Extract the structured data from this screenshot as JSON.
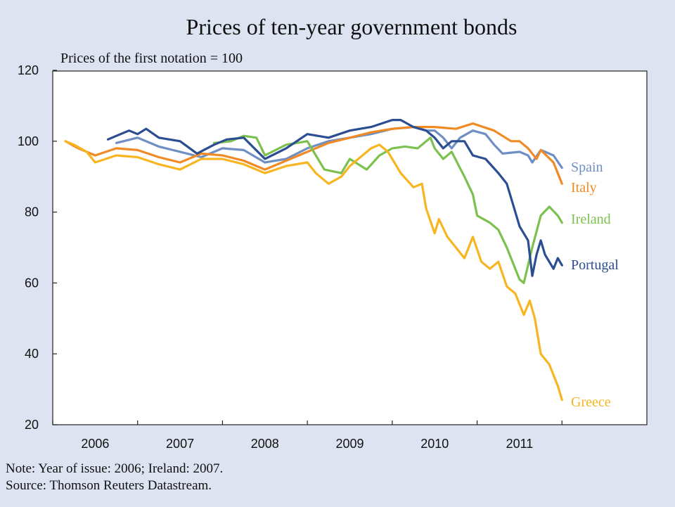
{
  "chart_data": {
    "type": "line",
    "title": "Prices of ten-year government bonds",
    "subtitle": "Prices of the first notation = 100",
    "xlabel": "",
    "ylabel": "",
    "xlim": [
      2005.5,
      2012.5
    ],
    "ylim": [
      20,
      120
    ],
    "yticks": [
      20,
      40,
      60,
      80,
      100,
      120
    ],
    "xticks": [
      2006,
      2007,
      2008,
      2009,
      2010,
      2011
    ],
    "grid": false,
    "series": [
      {
        "name": "Spain",
        "color": "#6f8fc4",
        "points": [
          [
            2006.25,
            99.5
          ],
          [
            2006.5,
            101
          ],
          [
            2006.75,
            98.5
          ],
          [
            2007.0,
            97
          ],
          [
            2007.25,
            95.5
          ],
          [
            2007.5,
            98
          ],
          [
            2007.75,
            97.5
          ],
          [
            2008.0,
            94
          ],
          [
            2008.25,
            95
          ],
          [
            2008.5,
            98
          ],
          [
            2008.75,
            100
          ],
          [
            2009.0,
            101
          ],
          [
            2009.25,
            102
          ],
          [
            2009.5,
            103.5
          ],
          [
            2009.75,
            104
          ],
          [
            2009.9,
            103
          ],
          [
            2010.0,
            103
          ],
          [
            2010.1,
            101
          ],
          [
            2010.2,
            98
          ],
          [
            2010.3,
            101
          ],
          [
            2010.45,
            103
          ],
          [
            2010.6,
            102
          ],
          [
            2010.7,
            99
          ],
          [
            2010.8,
            96.5
          ],
          [
            2011.0,
            97
          ],
          [
            2011.1,
            96
          ],
          [
            2011.15,
            94
          ],
          [
            2011.25,
            97.5
          ],
          [
            2011.4,
            96
          ],
          [
            2011.5,
            92.5
          ]
        ]
      },
      {
        "name": "Italy",
        "color": "#f08a24",
        "points": [
          [
            2005.65,
            100
          ],
          [
            2005.8,
            98
          ],
          [
            2006.0,
            96
          ],
          [
            2006.25,
            98
          ],
          [
            2006.5,
            97.5
          ],
          [
            2006.75,
            95.5
          ],
          [
            2007.0,
            94
          ],
          [
            2007.25,
            96.5
          ],
          [
            2007.5,
            96
          ],
          [
            2007.75,
            94.5
          ],
          [
            2008.0,
            92
          ],
          [
            2008.25,
            94.5
          ],
          [
            2008.5,
            97
          ],
          [
            2008.75,
            99.5
          ],
          [
            2009.0,
            101
          ],
          [
            2009.25,
            102.5
          ],
          [
            2009.5,
            103.5
          ],
          [
            2009.75,
            104
          ],
          [
            2010.0,
            104
          ],
          [
            2010.25,
            103.5
          ],
          [
            2010.45,
            105
          ],
          [
            2010.7,
            103
          ],
          [
            2010.9,
            100
          ],
          [
            2011.0,
            100
          ],
          [
            2011.1,
            98
          ],
          [
            2011.2,
            95
          ],
          [
            2011.25,
            97.5
          ],
          [
            2011.4,
            94
          ],
          [
            2011.5,
            88
          ]
        ]
      },
      {
        "name": "Ireland",
        "color": "#7cc14f",
        "points": [
          [
            2007.4,
            99.5
          ],
          [
            2007.6,
            100
          ],
          [
            2007.75,
            101.5
          ],
          [
            2007.9,
            101
          ],
          [
            2008.0,
            96
          ],
          [
            2008.25,
            99
          ],
          [
            2008.5,
            100
          ],
          [
            2008.6,
            96
          ],
          [
            2008.7,
            92
          ],
          [
            2008.9,
            91
          ],
          [
            2009.0,
            95
          ],
          [
            2009.2,
            92
          ],
          [
            2009.35,
            96
          ],
          [
            2009.5,
            98
          ],
          [
            2009.65,
            98.5
          ],
          [
            2009.8,
            98
          ],
          [
            2009.95,
            101
          ],
          [
            2010.0,
            98
          ],
          [
            2010.1,
            95
          ],
          [
            2010.2,
            97
          ],
          [
            2010.35,
            90
          ],
          [
            2010.45,
            85
          ],
          [
            2010.5,
            79
          ],
          [
            2010.65,
            77
          ],
          [
            2010.75,
            75
          ],
          [
            2010.85,
            70
          ],
          [
            2011.0,
            61
          ],
          [
            2011.05,
            60
          ],
          [
            2011.15,
            70
          ],
          [
            2011.25,
            79
          ],
          [
            2011.35,
            81.5
          ],
          [
            2011.45,
            79
          ],
          [
            2011.5,
            77
          ]
        ]
      },
      {
        "name": "Portugal",
        "color": "#2b4d91",
        "points": [
          [
            2006.15,
            100.5
          ],
          [
            2006.25,
            101.5
          ],
          [
            2006.4,
            103
          ],
          [
            2006.5,
            102
          ],
          [
            2006.6,
            103.5
          ],
          [
            2006.75,
            101
          ],
          [
            2007.0,
            100
          ],
          [
            2007.2,
            96.5
          ],
          [
            2007.4,
            99
          ],
          [
            2007.55,
            100.5
          ],
          [
            2007.75,
            101
          ],
          [
            2008.0,
            95
          ],
          [
            2008.25,
            98
          ],
          [
            2008.5,
            102
          ],
          [
            2008.75,
            101
          ],
          [
            2009.0,
            103
          ],
          [
            2009.25,
            104
          ],
          [
            2009.5,
            106
          ],
          [
            2009.6,
            106
          ],
          [
            2009.75,
            104
          ],
          [
            2009.9,
            103
          ],
          [
            2010.0,
            101
          ],
          [
            2010.1,
            98
          ],
          [
            2010.2,
            100
          ],
          [
            2010.35,
            100
          ],
          [
            2010.45,
            96
          ],
          [
            2010.6,
            95
          ],
          [
            2010.75,
            91
          ],
          [
            2010.85,
            88
          ],
          [
            2010.95,
            80
          ],
          [
            2011.0,
            76
          ],
          [
            2011.1,
            72
          ],
          [
            2011.15,
            62
          ],
          [
            2011.2,
            68
          ],
          [
            2011.25,
            72
          ],
          [
            2011.3,
            68
          ],
          [
            2011.4,
            64
          ],
          [
            2011.45,
            67
          ],
          [
            2011.5,
            65
          ]
        ]
      },
      {
        "name": "Greece",
        "color": "#f7b521",
        "points": [
          [
            2005.65,
            100
          ],
          [
            2005.75,
            99
          ],
          [
            2005.9,
            97
          ],
          [
            2006.0,
            94
          ],
          [
            2006.25,
            96
          ],
          [
            2006.5,
            95.5
          ],
          [
            2006.75,
            93.5
          ],
          [
            2007.0,
            92
          ],
          [
            2007.25,
            95
          ],
          [
            2007.5,
            95
          ],
          [
            2007.75,
            93.5
          ],
          [
            2008.0,
            91
          ],
          [
            2008.25,
            93
          ],
          [
            2008.5,
            94
          ],
          [
            2008.6,
            91
          ],
          [
            2008.75,
            88
          ],
          [
            2008.9,
            90
          ],
          [
            2009.0,
            93
          ],
          [
            2009.25,
            98
          ],
          [
            2009.35,
            99
          ],
          [
            2009.45,
            97
          ],
          [
            2009.6,
            91
          ],
          [
            2009.75,
            87
          ],
          [
            2009.85,
            88
          ],
          [
            2009.9,
            81
          ],
          [
            2010.0,
            74
          ],
          [
            2010.05,
            78
          ],
          [
            2010.15,
            73
          ],
          [
            2010.25,
            70
          ],
          [
            2010.35,
            67
          ],
          [
            2010.45,
            73
          ],
          [
            2010.55,
            66
          ],
          [
            2010.65,
            64
          ],
          [
            2010.75,
            66
          ],
          [
            2010.85,
            59
          ],
          [
            2010.95,
            57
          ],
          [
            2011.05,
            51
          ],
          [
            2011.12,
            55
          ],
          [
            2011.18,
            50
          ],
          [
            2011.25,
            40
          ],
          [
            2011.35,
            37
          ],
          [
            2011.45,
            31
          ],
          [
            2011.5,
            27
          ]
        ]
      }
    ]
  },
  "note": "Note: Year of issue: 2006; Ireland: 2007.",
  "source": "Source: Thomson Reuters Datastream."
}
